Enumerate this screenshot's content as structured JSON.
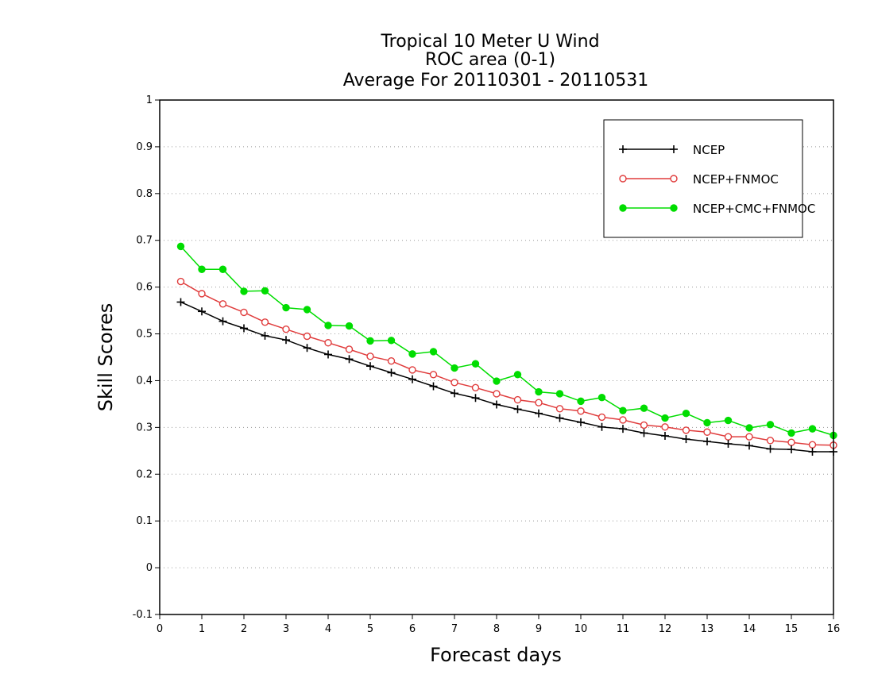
{
  "chart_data": {
    "type": "line",
    "title": [
      "Tropical 10 Meter U Wind",
      "ROC area (0-1)",
      "Average For 20110301 - 20110531"
    ],
    "xlabel": "Forecast days",
    "ylabel": "Skill Scores",
    "xlim": [
      0,
      16
    ],
    "ylim": [
      -0.1,
      1
    ],
    "xticks": [
      0,
      1,
      2,
      3,
      4,
      5,
      6,
      7,
      8,
      9,
      10,
      11,
      12,
      13,
      14,
      15,
      16
    ],
    "xtick_labels": [
      "0",
      "1",
      "2",
      "3",
      "4",
      "5",
      "6",
      "7",
      "8",
      "9",
      "10",
      "11",
      "12",
      "13",
      "14",
      "15",
      "16"
    ],
    "yticks": [
      -0.1,
      0,
      0.1,
      0.2,
      0.3,
      0.4,
      0.5,
      0.6,
      0.7,
      0.8,
      0.9,
      1
    ],
    "ytick_labels": [
      "-0.1",
      "0",
      "0.1",
      "0.2",
      "0.3",
      "0.4",
      "0.5",
      "0.6",
      "0.7",
      "0.8",
      "0.9",
      "1"
    ],
    "grid": true,
    "legend_position": "top-right",
    "x": [
      0.5,
      1,
      1.5,
      2,
      2.5,
      3,
      3.5,
      4,
      4.5,
      5,
      5.5,
      6,
      6.5,
      7,
      7.5,
      8,
      8.5,
      9,
      9.5,
      10,
      10.5,
      11,
      11.5,
      12,
      12.5,
      13,
      13.5,
      14,
      14.5,
      15,
      15.5,
      16
    ],
    "series": [
      {
        "name": "NCEP",
        "color": "#000000",
        "marker": "plus",
        "values": [
          0.568,
          0.548,
          0.527,
          0.512,
          0.496,
          0.487,
          0.47,
          0.456,
          0.446,
          0.431,
          0.417,
          0.403,
          0.388,
          0.373,
          0.363,
          0.349,
          0.339,
          0.33,
          0.32,
          0.311,
          0.301,
          0.297,
          0.288,
          0.282,
          0.275,
          0.27,
          0.265,
          0.261,
          0.254,
          0.253,
          0.248,
          0.248
        ]
      },
      {
        "name": "NCEP+FNMOC",
        "color": "#e03c3c",
        "marker": "open-circle",
        "values": [
          0.612,
          0.586,
          0.564,
          0.546,
          0.525,
          0.51,
          0.495,
          0.481,
          0.467,
          0.452,
          0.442,
          0.423,
          0.413,
          0.396,
          0.385,
          0.372,
          0.359,
          0.353,
          0.34,
          0.335,
          0.322,
          0.316,
          0.305,
          0.301,
          0.294,
          0.29,
          0.28,
          0.28,
          0.272,
          0.268,
          0.263,
          0.262
        ]
      },
      {
        "name": "NCEP+CMC+FNMOC",
        "color": "#00dd00",
        "marker": "filled-circle",
        "values": [
          0.687,
          0.638,
          0.638,
          0.591,
          0.592,
          0.556,
          0.552,
          0.518,
          0.517,
          0.485,
          0.486,
          0.457,
          0.462,
          0.427,
          0.436,
          0.399,
          0.413,
          0.376,
          0.372,
          0.356,
          0.364,
          0.336,
          0.341,
          0.32,
          0.33,
          0.31,
          0.315,
          0.299,
          0.306,
          0.288,
          0.297,
          0.283
        ]
      }
    ]
  }
}
